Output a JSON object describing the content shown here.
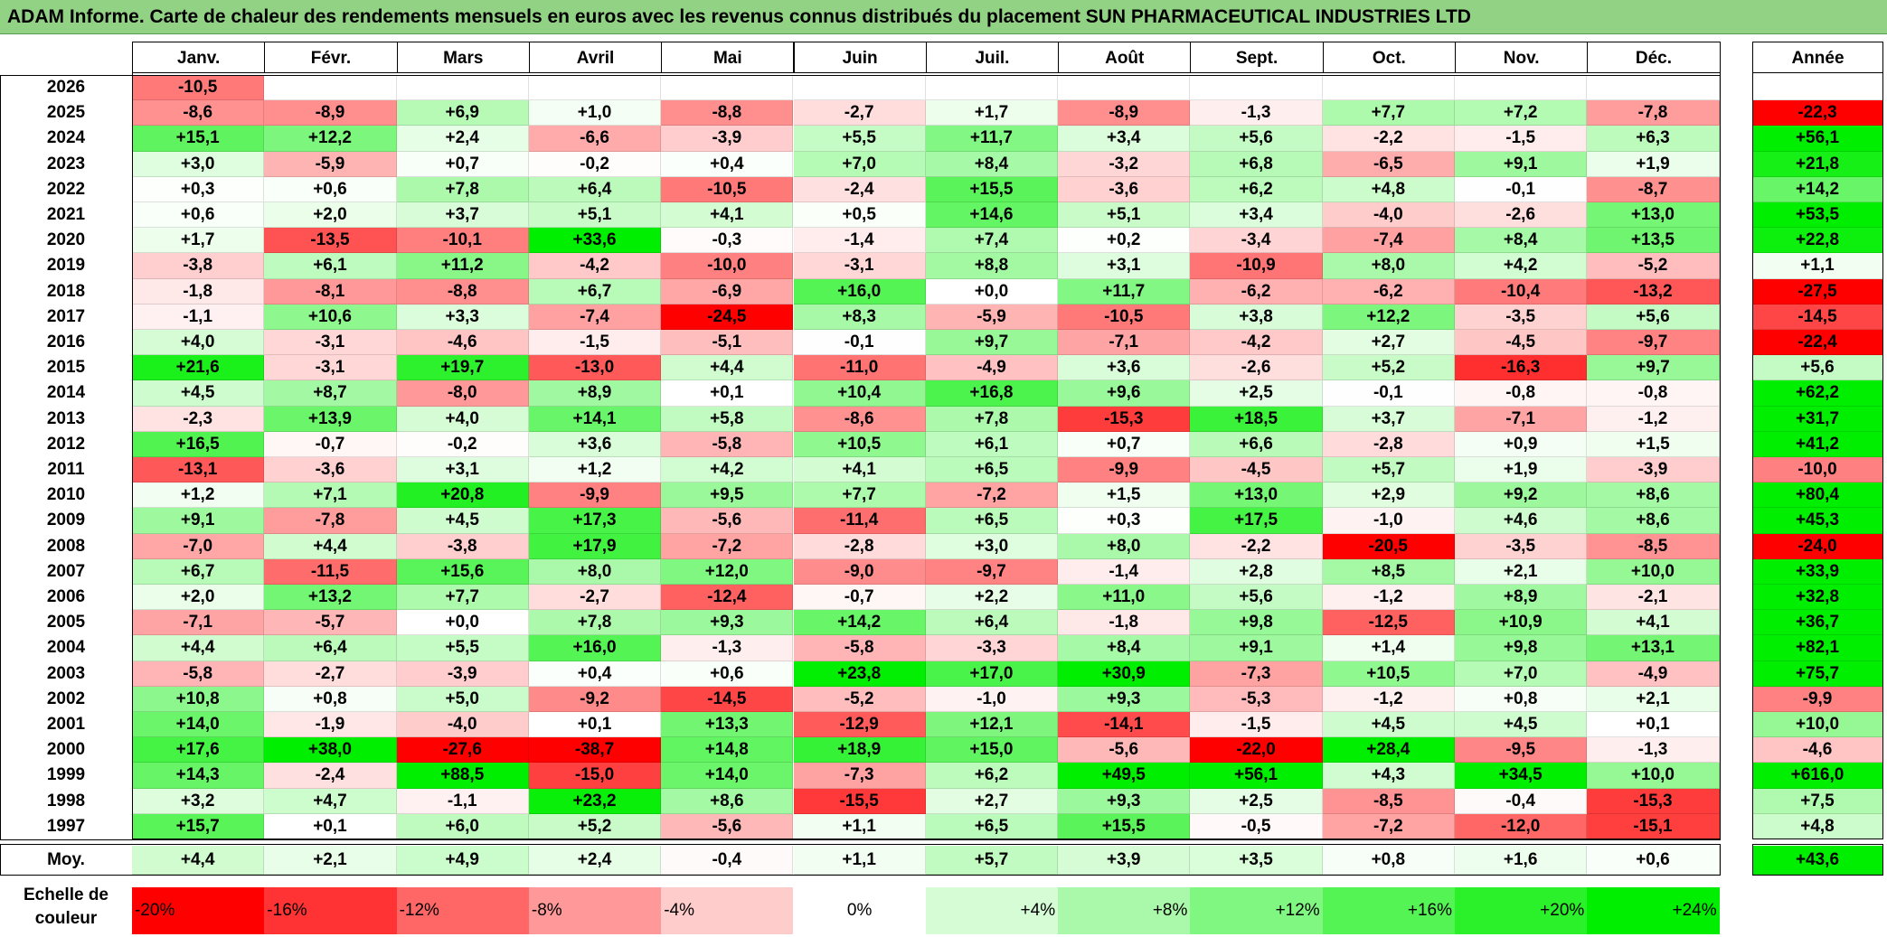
{
  "title": "ADAM Informe. Carte de chaleur des rendements mensuels en euros avec les revenus connus distribués du placement SUN PHARMACEUTICAL INDUSTRIES LTD",
  "chart_data": {
    "type": "heatmap",
    "title": "ADAM Informe. Carte de chaleur des rendements mensuels en euros avec les revenus connus distribués du placement SUN PHARMACEUTICAL INDUSTRIES LTD",
    "columns": [
      "Janv.",
      "Févr.",
      "Mars",
      "Avril",
      "Mai",
      "Juin",
      "Juil.",
      "Août",
      "Sept.",
      "Oct.",
      "Nov.",
      "Déc."
    ],
    "year_column_label": "Année",
    "rows": [
      {
        "year": "2026",
        "months": [
          "-10,5",
          "",
          "",
          "",
          "",
          "",
          "",
          "",
          "",
          "",
          "",
          ""
        ],
        "annual": ""
      },
      {
        "year": "2025",
        "months": [
          "-8,6",
          "-8,9",
          "+6,9",
          "+1,0",
          "-8,8",
          "-2,7",
          "+1,7",
          "-8,9",
          "-1,3",
          "+7,7",
          "+7,2",
          "-7,8"
        ],
        "annual": "-22,3"
      },
      {
        "year": "2024",
        "months": [
          "+15,1",
          "+12,2",
          "+2,4",
          "-6,6",
          "-3,9",
          "+5,5",
          "+11,7",
          "+3,4",
          "+5,6",
          "-2,2",
          "-1,5",
          "+6,3"
        ],
        "annual": "+56,1"
      },
      {
        "year": "2023",
        "months": [
          "+3,0",
          "-5,9",
          "+0,7",
          "-0,2",
          "+0,4",
          "+7,0",
          "+8,4",
          "-3,2",
          "+6,8",
          "-6,5",
          "+9,1",
          "+1,9"
        ],
        "annual": "+21,8"
      },
      {
        "year": "2022",
        "months": [
          "+0,3",
          "+0,6",
          "+7,8",
          "+6,4",
          "-10,5",
          "-2,4",
          "+15,5",
          "-3,6",
          "+6,2",
          "+4,8",
          "-0,1",
          "-8,7"
        ],
        "annual": "+14,2"
      },
      {
        "year": "2021",
        "months": [
          "+0,6",
          "+2,0",
          "+3,7",
          "+5,1",
          "+4,1",
          "+0,5",
          "+14,6",
          "+5,1",
          "+3,4",
          "-4,0",
          "-2,6",
          "+13,0"
        ],
        "annual": "+53,5"
      },
      {
        "year": "2020",
        "months": [
          "+1,7",
          "-13,5",
          "-10,1",
          "+33,6",
          "-0,3",
          "-1,4",
          "+7,4",
          "+0,2",
          "-3,4",
          "-7,4",
          "+8,4",
          "+13,5"
        ],
        "annual": "+22,8"
      },
      {
        "year": "2019",
        "months": [
          "-3,8",
          "+6,1",
          "+11,2",
          "-4,2",
          "-10,0",
          "-3,1",
          "+8,8",
          "+3,1",
          "-10,9",
          "+8,0",
          "+4,2",
          "-5,2"
        ],
        "annual": "+1,1"
      },
      {
        "year": "2018",
        "months": [
          "-1,8",
          "-8,1",
          "-8,8",
          "+6,7",
          "-6,9",
          "+16,0",
          "+0,0",
          "+11,7",
          "-6,2",
          "-6,2",
          "-10,4",
          "-13,2"
        ],
        "annual": "-27,5"
      },
      {
        "year": "2017",
        "months": [
          "-1,1",
          "+10,6",
          "+3,3",
          "-7,4",
          "-24,5",
          "+8,3",
          "-5,9",
          "-10,5",
          "+3,8",
          "+12,2",
          "-3,5",
          "+5,6"
        ],
        "annual": "-14,5"
      },
      {
        "year": "2016",
        "months": [
          "+4,0",
          "-3,1",
          "-4,6",
          "-1,5",
          "-5,1",
          "-0,1",
          "+9,7",
          "-7,1",
          "-4,2",
          "+2,7",
          "-4,5",
          "-9,7"
        ],
        "annual": "-22,4"
      },
      {
        "year": "2015",
        "months": [
          "+21,6",
          "-3,1",
          "+19,7",
          "-13,0",
          "+4,4",
          "-11,0",
          "-4,9",
          "+3,6",
          "-2,6",
          "+5,2",
          "-16,3",
          "+9,7"
        ],
        "annual": "+5,6"
      },
      {
        "year": "2014",
        "months": [
          "+4,5",
          "+8,7",
          "-8,0",
          "+8,9",
          "+0,1",
          "+10,4",
          "+16,8",
          "+9,6",
          "+2,5",
          "-0,1",
          "-0,8",
          "-0,8"
        ],
        "annual": "+62,2"
      },
      {
        "year": "2013",
        "months": [
          "-2,3",
          "+13,9",
          "+4,0",
          "+14,1",
          "+5,8",
          "-8,6",
          "+7,8",
          "-15,3",
          "+18,5",
          "+3,7",
          "-7,1",
          "-1,2"
        ],
        "annual": "+31,7"
      },
      {
        "year": "2012",
        "months": [
          "+16,5",
          "-0,7",
          "-0,2",
          "+3,6",
          "-5,8",
          "+10,5",
          "+6,1",
          "+0,7",
          "+6,6",
          "-2,8",
          "+0,9",
          "+1,5"
        ],
        "annual": "+41,2"
      },
      {
        "year": "2011",
        "months": [
          "-13,1",
          "-3,6",
          "+3,1",
          "+1,2",
          "+4,2",
          "+4,1",
          "+6,5",
          "-9,9",
          "-4,5",
          "+5,7",
          "+1,9",
          "-3,9"
        ],
        "annual": "-10,0"
      },
      {
        "year": "2010",
        "months": [
          "+1,2",
          "+7,1",
          "+20,8",
          "-9,9",
          "+9,5",
          "+7,7",
          "-7,2",
          "+1,5",
          "+13,0",
          "+2,9",
          "+9,2",
          "+8,6"
        ],
        "annual": "+80,4"
      },
      {
        "year": "2009",
        "months": [
          "+9,1",
          "-7,8",
          "+4,5",
          "+17,3",
          "-5,6",
          "-11,4",
          "+6,5",
          "+0,3",
          "+17,5",
          "-1,0",
          "+4,6",
          "+8,6"
        ],
        "annual": "+45,3"
      },
      {
        "year": "2008",
        "months": [
          "-7,0",
          "+4,4",
          "-3,8",
          "+17,9",
          "-7,2",
          "-2,8",
          "+3,0",
          "+8,0",
          "-2,2",
          "-20,5",
          "-3,5",
          "-8,5"
        ],
        "annual": "-24,0"
      },
      {
        "year": "2007",
        "months": [
          "+6,7",
          "-11,5",
          "+15,6",
          "+8,0",
          "+12,0",
          "-9,0",
          "-9,7",
          "-1,4",
          "+2,8",
          "+8,5",
          "+2,1",
          "+10,0"
        ],
        "annual": "+33,9"
      },
      {
        "year": "2006",
        "months": [
          "+2,0",
          "+13,2",
          "+7,7",
          "-2,7",
          "-12,4",
          "-0,7",
          "+2,2",
          "+11,0",
          "+5,6",
          "-1,2",
          "+8,9",
          "-2,1"
        ],
        "annual": "+32,8"
      },
      {
        "year": "2005",
        "months": [
          "-7,1",
          "-5,7",
          "+0,0",
          "+7,8",
          "+9,3",
          "+14,2",
          "+6,4",
          "-1,8",
          "+9,8",
          "-12,5",
          "+10,9",
          "+4,1"
        ],
        "annual": "+36,7"
      },
      {
        "year": "2004",
        "months": [
          "+4,4",
          "+6,4",
          "+5,5",
          "+16,0",
          "-1,3",
          "-5,8",
          "-3,3",
          "+8,4",
          "+9,1",
          "+1,4",
          "+9,8",
          "+13,1"
        ],
        "annual": "+82,1"
      },
      {
        "year": "2003",
        "months": [
          "-5,8",
          "-2,7",
          "-3,9",
          "+0,4",
          "+0,6",
          "+23,8",
          "+17,0",
          "+30,9",
          "-7,3",
          "+10,5",
          "+7,0",
          "-4,9"
        ],
        "annual": "+75,7"
      },
      {
        "year": "2002",
        "months": [
          "+10,8",
          "+0,8",
          "+5,0",
          "-9,2",
          "-14,5",
          "-5,2",
          "-1,0",
          "+9,3",
          "-5,3",
          "-1,2",
          "+0,8",
          "+2,1"
        ],
        "annual": "-9,9"
      },
      {
        "year": "2001",
        "months": [
          "+14,0",
          "-1,9",
          "-4,0",
          "+0,1",
          "+13,3",
          "-12,9",
          "+12,1",
          "-14,1",
          "-1,5",
          "+4,5",
          "+4,5",
          "+0,1"
        ],
        "annual": "+10,0"
      },
      {
        "year": "2000",
        "months": [
          "+17,6",
          "+38,0",
          "-27,6",
          "-38,7",
          "+14,8",
          "+18,9",
          "+15,0",
          "-5,6",
          "-22,0",
          "+28,4",
          "-9,5",
          "-1,3"
        ],
        "annual": "-4,6"
      },
      {
        "year": "1999",
        "months": [
          "+14,3",
          "-2,4",
          "+88,5",
          "-15,0",
          "+14,0",
          "-7,3",
          "+6,2",
          "+49,5",
          "+56,1",
          "+4,3",
          "+34,5",
          "+10,0"
        ],
        "annual": "+616,0"
      },
      {
        "year": "1998",
        "months": [
          "+3,2",
          "+4,7",
          "-1,1",
          "+23,2",
          "+8,6",
          "-15,5",
          "+2,7",
          "+9,3",
          "+2,5",
          "-8,5",
          "-0,4",
          "-15,3"
        ],
        "annual": "+7,5"
      },
      {
        "year": "1997",
        "months": [
          "+15,7",
          "+0,1",
          "+6,0",
          "+5,2",
          "-5,6",
          "+1,1",
          "+6,5",
          "+15,5",
          "-0,5",
          "-7,2",
          "-12,0",
          "-15,1"
        ],
        "annual": "+4,8"
      }
    ],
    "average": {
      "label": "Moy.",
      "months": [
        "+4,4",
        "+2,1",
        "+4,9",
        "+2,4",
        "-0,4",
        "+1,1",
        "+5,7",
        "+3,9",
        "+3,5",
        "+0,8",
        "+1,6",
        "+0,6"
      ],
      "annual": "+43,6"
    },
    "color_scale": {
      "label_line1": "Echelle de",
      "label_line2": "couleur",
      "stops": [
        "-20%",
        "-16%",
        "-12%",
        "-8%",
        "-4%",
        "0%",
        "+4%",
        "+8%",
        "+12%",
        "+16%",
        "+20%",
        "+24%"
      ],
      "negative_color": "#ff0000",
      "neutral_color": "#ffffff",
      "positive_color": "#00ee00"
    }
  }
}
